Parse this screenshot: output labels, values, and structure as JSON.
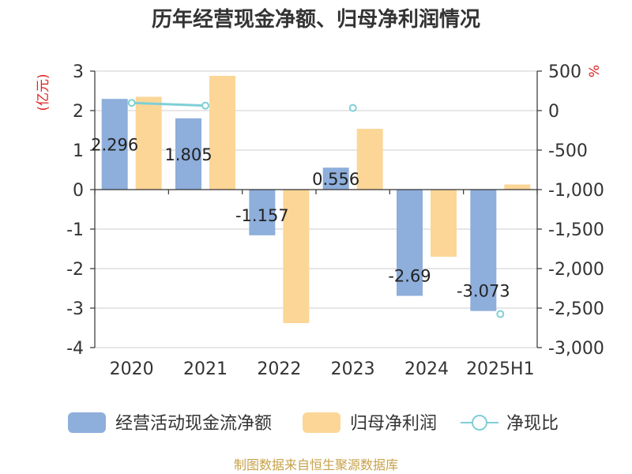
{
  "source": "制图数据来自恒生聚源数据库",
  "chart_data": {
    "type": "bar",
    "title": "历年经营现金净额、归母净利润情况",
    "categories": [
      "2020",
      "2021",
      "2022",
      "2023",
      "2024",
      "2025H1"
    ],
    "left_axis": {
      "unit": "(亿元)",
      "min": -4,
      "max": 3,
      "step": 1
    },
    "right_axis": {
      "unit": "%",
      "min": -3000,
      "max": 500,
      "step": 500
    },
    "grid": true,
    "legend_position": "bottom",
    "series": [
      {
        "name": "经营活动现金流净额",
        "kind": "bar",
        "axis": "left",
        "color": "#8eaedb",
        "values": [
          2.296,
          1.805,
          -1.157,
          0.556,
          -2.69,
          -3.073
        ],
        "labels": [
          "2.296",
          "1.805",
          "-1.157",
          "0.556",
          "-2.69",
          "-3.073"
        ]
      },
      {
        "name": "归母净利润",
        "kind": "bar",
        "axis": "left",
        "color": "#fcd697",
        "values": [
          2.35,
          2.88,
          -3.38,
          1.54,
          -1.7,
          0.13
        ]
      },
      {
        "name": "净现比",
        "kind": "line",
        "axis": "right",
        "color": "#7fcfd6",
        "values": [
          98,
          63,
          null,
          34,
          null,
          -2575
        ]
      }
    ]
  }
}
